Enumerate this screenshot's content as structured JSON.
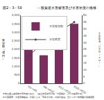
{
  "chart_data": {
    "type": "bar",
    "title": "一般資産水害被害及び水害密度の推移",
    "annotations": [
      "図2－3－58",
      "※数は過去各期間の平均値である。（国土交通省河川局「水害統計」より内閣府作成）",
      "※水害密度：水害流域面積（水害による「宅地その他」の浸水面積）当たりの一般資産水害被害額"
    ],
    "ylabel": "被害額（億円）",
    "y2label": "水害密度（百万円/km²）",
    "categories": [
      "H1→H5",
      "H6→H10",
      "H11→H15",
      "H16→H20"
    ],
    "series": [
      {
        "name": "水害被害額",
        "type": "bar",
        "color": "#7b2d5e",
        "values": [
          2200,
          1650,
          2500,
          3500
        ]
      },
      {
        "name": "水害密度",
        "type": "line",
        "color": "#444444",
        "marker": "circle",
        "axis": "y2",
        "values": [
          20,
          30,
          38,
          45
        ]
      }
    ],
    "ylim": [
      0,
      4000
    ],
    "yticks": [
      0,
      500,
      {
        "value": 1000,
        "label": "1,000"
      },
      {
        "value": 1500,
        "label": "1,500"
      },
      {
        "value": 2000,
        "label": "2,000"
      },
      {
        "value": 2500,
        "label": "2,500"
      },
      {
        "value": 3000,
        "label": "3,000"
      },
      {
        "value": 3500,
        "label": "3,500"
      },
      {
        "value": 4000,
        "label": "4,000"
      }
    ],
    "y2lim": [
      0,
      50
    ],
    "y2ticks": [
      0,
      5,
      10,
      15,
      20,
      25,
      30,
      35,
      40,
      45,
      50
    ],
    "grid": false,
    "legend": "upper left"
  }
}
